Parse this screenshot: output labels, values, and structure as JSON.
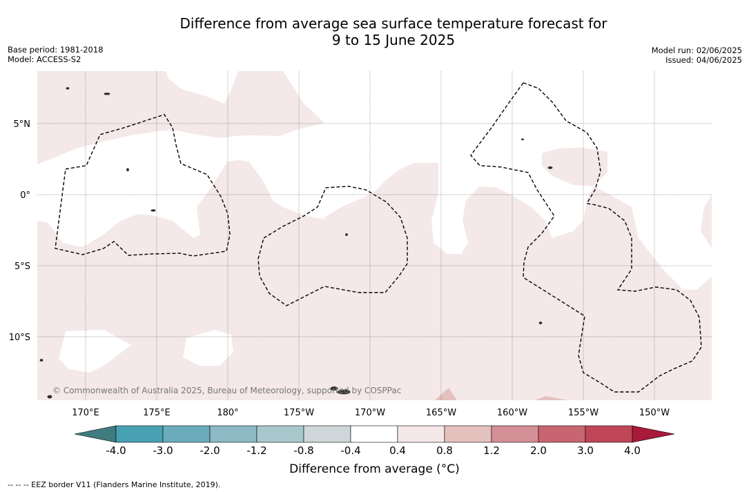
{
  "header": {
    "title_line1": "Difference from average sea surface temperature forecast for",
    "title_line2": "9 to 15 June 2025",
    "base_period": "Base period: 1981-2018",
    "model": "Model: ACCESS-S2",
    "model_run": "Model run: 02/06/2025",
    "issued": "Issued: 04/06/2025"
  },
  "map": {
    "lat_labels": [
      "5°N",
      "0°",
      "5°S",
      "10°S"
    ],
    "lon_labels": [
      "170°E",
      "175°E",
      "180°",
      "175°W",
      "170°W",
      "165°W",
      "160°W",
      "155°W",
      "150°W"
    ],
    "copyright": "© Commonwealth of Australia 2025, Bureau of Meteorology, supported by COSPPac"
  },
  "colorbar": {
    "title": "Difference from average (°C)",
    "tick_labels": [
      "-4.0",
      "-3.0",
      "-2.0",
      "-1.2",
      "-0.8",
      "-0.4",
      "0.4",
      "0.8",
      "1.2",
      "2.0",
      "3.0",
      "4.0"
    ],
    "colors": [
      "#3f7c80",
      "#48a1b2",
      "#6aacbb",
      "#8cb9c4",
      "#a9c8cd",
      "#cfd6d9",
      "#ffffff",
      "#f4e8e8",
      "#e4c1bd",
      "#d48f97",
      "#c96570",
      "#be4657",
      "#a8193a"
    ]
  },
  "footer": {
    "legend_text": "--  --  -- EEZ border V11 (Flanders Marine Institute, 2019)."
  }
}
